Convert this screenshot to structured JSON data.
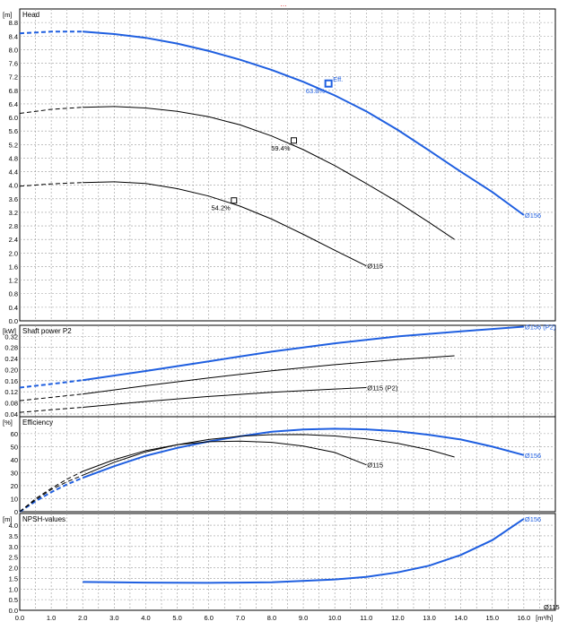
{
  "header_text": "…",
  "colors": {
    "blue": "#1f5fe0",
    "black": "#000000",
    "grid": "#9a9a9a",
    "header_red": "#e02020"
  },
  "x_axis": {
    "unit": "[m³/h]",
    "min": 0.0,
    "max": 17.0,
    "ticks": [
      "0.0",
      "1.0",
      "2.0",
      "3.0",
      "4.0",
      "5.0",
      "6.0",
      "7.0",
      "8.0",
      "9.0",
      "10.0",
      "11.0",
      "12.0",
      "13.0",
      "14.0",
      "15.0",
      "16.0"
    ]
  },
  "chart_data": [
    {
      "type": "line",
      "title": "Head",
      "ylabel": "[m]",
      "ylim": [
        0,
        9.2
      ],
      "yticks": [
        "0.0",
        "0.4",
        "0.8",
        "1.2",
        "1.6",
        "2.0",
        "2.4",
        "2.8",
        "3.2",
        "3.6",
        "4.0",
        "4.4",
        "4.8",
        "5.2",
        "5.6",
        "6.0",
        "6.4",
        "6.8",
        "7.2",
        "7.6",
        "8.0",
        "8.4",
        "8.8"
      ],
      "series": [
        {
          "name": "Ø156",
          "color": "blue",
          "dashed": [
            [
              0,
              8.48
            ],
            [
              1,
              8.53
            ],
            [
              2,
              8.53
            ]
          ],
          "points": [
            [
              2,
              8.53
            ],
            [
              3,
              8.46
            ],
            [
              4,
              8.35
            ],
            [
              5,
              8.18
            ],
            [
              6,
              7.96
            ],
            [
              7,
              7.7
            ],
            [
              8,
              7.4
            ],
            [
              9,
              7.05
            ],
            [
              10,
              6.65
            ],
            [
              11,
              6.18
            ],
            [
              12,
              5.63
            ],
            [
              13,
              5.02
            ],
            [
              14,
              4.4
            ],
            [
              15,
              3.8
            ],
            [
              16,
              3.12
            ]
          ]
        },
        {
          "name": "",
          "color": "black",
          "dashed": [
            [
              0,
              6.12
            ],
            [
              1,
              6.24
            ],
            [
              2,
              6.3
            ]
          ],
          "points": [
            [
              2,
              6.3
            ],
            [
              3,
              6.32
            ],
            [
              4,
              6.28
            ],
            [
              5,
              6.18
            ],
            [
              6,
              6.02
            ],
            [
              7,
              5.78
            ],
            [
              8,
              5.45
            ],
            [
              9,
              5.05
            ],
            [
              10,
              4.58
            ],
            [
              11,
              4.05
            ],
            [
              12,
              3.5
            ],
            [
              13,
              2.9
            ],
            [
              13.8,
              2.4
            ]
          ]
        },
        {
          "name": "Ø115",
          "color": "black",
          "dashed": [
            [
              0,
              3.97
            ],
            [
              1,
              4.04
            ],
            [
              2,
              4.08
            ]
          ],
          "points": [
            [
              2,
              4.08
            ],
            [
              3,
              4.1
            ],
            [
              4,
              4.05
            ],
            [
              5,
              3.9
            ],
            [
              6,
              3.68
            ],
            [
              7,
              3.38
            ],
            [
              8,
              3.0
            ],
            [
              9,
              2.55
            ],
            [
              10,
              2.08
            ],
            [
              11,
              1.62
            ]
          ]
        }
      ],
      "markers": [
        {
          "x": 9.8,
          "y": 7.0,
          "label": "63.8%",
          "color": "blue",
          "bold": true,
          "extra": "Eff."
        },
        {
          "x": 8.7,
          "y": 5.32,
          "label": "59.4%",
          "color": "black"
        },
        {
          "x": 6.8,
          "y": 3.55,
          "label": "54.2%",
          "color": "black"
        }
      ],
      "end_labels": [
        {
          "text": "Ø156",
          "x": 16.0,
          "y": 3.12,
          "color": "blue"
        },
        {
          "text": "Ø115",
          "x": 11.0,
          "y": 1.62,
          "color": "black"
        }
      ]
    },
    {
      "type": "line",
      "title": "Shaft power P2",
      "ylabel": "[kW]",
      "ylim": [
        0.03,
        0.36
      ],
      "yticks": [
        "0.04",
        "0.08",
        "0.12",
        "0.16",
        "0.20",
        "0.24",
        "0.28",
        "0.32"
      ],
      "series": [
        {
          "name": "Ø156 (P2)",
          "color": "blue",
          "dashed": [
            [
              0,
              0.135
            ],
            [
              1,
              0.148
            ],
            [
              2,
              0.162
            ]
          ],
          "points": [
            [
              2,
              0.162
            ],
            [
              4,
              0.195
            ],
            [
              6,
              0.23
            ],
            [
              8,
              0.265
            ],
            [
              10,
              0.295
            ],
            [
              12,
              0.32
            ],
            [
              14,
              0.338
            ],
            [
              16,
              0.355
            ]
          ]
        },
        {
          "name": "",
          "color": "black",
          "dashed": [
            [
              0,
              0.088
            ],
            [
              1,
              0.1
            ],
            [
              2,
              0.112
            ]
          ],
          "points": [
            [
              2,
              0.112
            ],
            [
              4,
              0.142
            ],
            [
              6,
              0.17
            ],
            [
              8,
              0.196
            ],
            [
              10,
              0.218
            ],
            [
              12,
              0.236
            ],
            [
              13.8,
              0.25
            ]
          ]
        },
        {
          "name": "Ø115 (P2)",
          "color": "black",
          "dashed": [
            [
              0,
              0.046
            ],
            [
              1,
              0.055
            ],
            [
              2,
              0.064
            ]
          ],
          "points": [
            [
              2,
              0.064
            ],
            [
              4,
              0.085
            ],
            [
              6,
              0.103
            ],
            [
              8,
              0.118
            ],
            [
              10,
              0.13
            ],
            [
              11,
              0.135
            ]
          ]
        }
      ],
      "end_labels": [
        {
          "text": "Ø156 (P2)",
          "x": 16.0,
          "y": 0.355,
          "color": "blue"
        },
        {
          "text": "Ø115 (P2)",
          "x": 11.0,
          "y": 0.135,
          "color": "black"
        }
      ]
    },
    {
      "type": "line",
      "title": "Efficiency",
      "ylabel": "[%]",
      "ylim": [
        0,
        73
      ],
      "yticks": [
        "0",
        "10",
        "20",
        "30",
        "40",
        "50",
        "60"
      ],
      "series": [
        {
          "name": "Ø156",
          "color": "blue",
          "dashed": [
            [
              0,
              0
            ],
            [
              0.5,
              8
            ],
            [
              1,
              15
            ],
            [
              1.5,
              21
            ],
            [
              2,
              26
            ]
          ],
          "points": [
            [
              2,
              26
            ],
            [
              3,
              35
            ],
            [
              4,
              43
            ],
            [
              5,
              49
            ],
            [
              6,
              54
            ],
            [
              7,
              58
            ],
            [
              8,
              61.5
            ],
            [
              9,
              63.2
            ],
            [
              10,
              63.8
            ],
            [
              11,
              63.3
            ],
            [
              12,
              61.8
            ],
            [
              13,
              59
            ],
            [
              14,
              55.5
            ],
            [
              15,
              50
            ],
            [
              16,
              43.5
            ]
          ]
        },
        {
          "name": "",
          "color": "black",
          "dashed": [
            [
              0,
              0
            ],
            [
              0.5,
              9
            ],
            [
              1,
              17
            ],
            [
              1.5,
              23
            ],
            [
              2,
              28
            ]
          ],
          "points": [
            [
              2,
              28
            ],
            [
              3,
              38
            ],
            [
              4,
              46
            ],
            [
              5,
              51.5
            ],
            [
              6,
              55.5
            ],
            [
              7,
              58
            ],
            [
              8,
              59.2
            ],
            [
              9,
              59.3
            ],
            [
              10,
              58.2
            ],
            [
              11,
              56
            ],
            [
              12,
              52.5
            ],
            [
              13,
              47.5
            ],
            [
              13.8,
              42
            ]
          ]
        },
        {
          "name": "Ø115",
          "color": "black",
          "dashed": [
            [
              0,
              0
            ],
            [
              0.5,
              10
            ],
            [
              1,
              18
            ],
            [
              1.5,
              25
            ],
            [
              2,
              31
            ]
          ],
          "points": [
            [
              2,
              31
            ],
            [
              3,
              40
            ],
            [
              4,
              47
            ],
            [
              5,
              51.5
            ],
            [
              6,
              53.8
            ],
            [
              7,
              54.2
            ],
            [
              8,
              53.3
            ],
            [
              9,
              50.5
            ],
            [
              10,
              45.5
            ],
            [
              11,
              36
            ]
          ]
        }
      ],
      "end_labels": [
        {
          "text": "Ø156",
          "x": 16.0,
          "y": 43.5,
          "color": "blue"
        },
        {
          "text": "Ø115",
          "x": 11.0,
          "y": 36,
          "color": "black"
        }
      ]
    },
    {
      "type": "line",
      "title": "NPSH-values",
      "ylabel": "[m]",
      "ylim": [
        0,
        4.55
      ],
      "yticks": [
        "0.0",
        "0.5",
        "1.0",
        "1.5",
        "2.0",
        "2.5",
        "3.0",
        "3.5",
        "4.0"
      ],
      "series": [
        {
          "name": "Ø156",
          "color": "blue",
          "dashed": [],
          "points": [
            [
              2,
              1.33
            ],
            [
              4,
              1.3
            ],
            [
              6,
              1.29
            ],
            [
              8,
              1.32
            ],
            [
              10,
              1.45
            ],
            [
              11,
              1.57
            ],
            [
              12,
              1.78
            ],
            [
              13,
              2.1
            ],
            [
              14,
              2.6
            ],
            [
              15,
              3.3
            ],
            [
              16,
              4.3
            ]
          ]
        }
      ],
      "end_labels": [
        {
          "text": "Ø156",
          "x": 16.0,
          "y": 4.3,
          "color": "blue"
        },
        {
          "text": "Ø115",
          "x": 16.6,
          "y": 0.17,
          "color": "black"
        }
      ]
    }
  ]
}
